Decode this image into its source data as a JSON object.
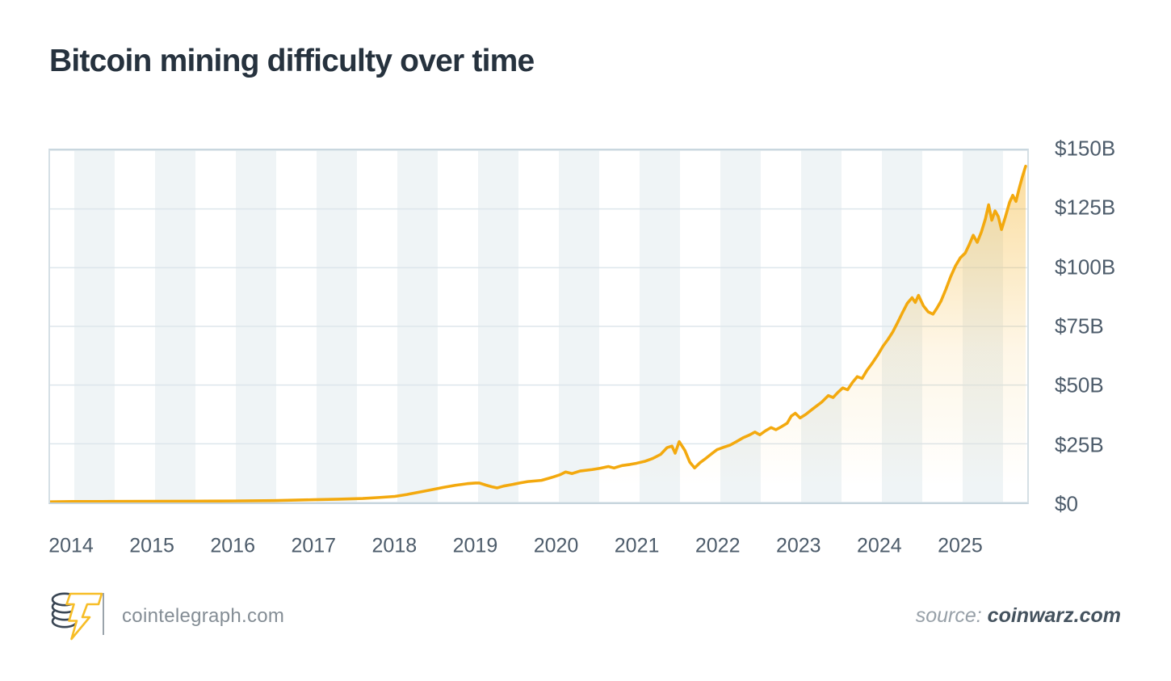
{
  "title": "Bitcoin mining difficulty over time",
  "footer": {
    "brand": "cointelegraph.com",
    "source_label": "source:",
    "source_value": "coinwarz.com"
  },
  "colors": {
    "line": "#F3A90E",
    "fill_top": "rgba(243,169,14,0.40)",
    "fill_mid": "rgba(243,169,14,0.10)",
    "fill_bottom": "rgba(243,169,14,0)",
    "title_text": "#26323E",
    "axis_label": "#4D5C6B",
    "gridline": "#DDE6EC",
    "stripe": "#EFF4F6",
    "logo_dark": "#3A4654",
    "logo_yellow": "#F7BD26"
  },
  "chart_data": {
    "type": "area",
    "title": "Bitcoin mining difficulty over time",
    "xlabel": "",
    "ylabel": "",
    "unit": "USD billions",
    "grid": "horizontal",
    "legend": "none",
    "xlim": [
      2013.72,
      2025.85
    ],
    "ylim": [
      0,
      150
    ],
    "x_tick_values": [
      2014,
      2015,
      2016,
      2017,
      2018,
      2019,
      2020,
      2021,
      2022,
      2023,
      2024,
      2025
    ],
    "x_tick_labels": [
      "2014",
      "2015",
      "2016",
      "2017",
      "2018",
      "2019",
      "2020",
      "2021",
      "2022",
      "2023",
      "2024",
      "2025"
    ],
    "y_tick_values": [
      150,
      125,
      100,
      75,
      50,
      25,
      0
    ],
    "y_tick_labels": [
      "$150B",
      "$125B",
      "$100B",
      "$75B",
      "$50B",
      "$25B",
      "$0"
    ],
    "series": [
      {
        "name": "Bitcoin mining difficulty",
        "x": [
          2013.72,
          2014.0,
          2014.5,
          2015.0,
          2015.5,
          2016.0,
          2016.5,
          2017.0,
          2017.3,
          2017.6,
          2017.8,
          2018.0,
          2018.15,
          2018.3,
          2018.45,
          2018.6,
          2018.75,
          2018.9,
          2019.0,
          2019.05,
          2019.13,
          2019.2,
          2019.27,
          2019.35,
          2019.45,
          2019.55,
          2019.65,
          2019.75,
          2019.82,
          2019.9,
          2019.97,
          2020.05,
          2020.12,
          2020.2,
          2020.3,
          2020.45,
          2020.55,
          2020.65,
          2020.72,
          2020.82,
          2020.92,
          2021.0,
          2021.1,
          2021.2,
          2021.3,
          2021.38,
          2021.44,
          2021.48,
          2021.53,
          2021.6,
          2021.66,
          2021.72,
          2021.79,
          2021.86,
          2021.93,
          2022.0,
          2022.08,
          2022.16,
          2022.24,
          2022.32,
          2022.4,
          2022.47,
          2022.53,
          2022.6,
          2022.67,
          2022.73,
          2022.8,
          2022.87,
          2022.92,
          2022.97,
          2023.03,
          2023.1,
          2023.2,
          2023.3,
          2023.38,
          2023.44,
          2023.5,
          2023.56,
          2023.62,
          2023.68,
          2023.74,
          2023.8,
          2023.86,
          2023.92,
          2024.0,
          2024.06,
          2024.12,
          2024.18,
          2024.24,
          2024.3,
          2024.36,
          2024.42,
          2024.46,
          2024.5,
          2024.56,
          2024.62,
          2024.68,
          2024.73,
          2024.78,
          2024.84,
          2024.9,
          2024.96,
          2025.02,
          2025.08,
          2025.13,
          2025.18,
          2025.23,
          2025.28,
          2025.33,
          2025.37,
          2025.41,
          2025.45,
          2025.49,
          2025.53,
          2025.58,
          2025.63,
          2025.67,
          2025.71,
          2025.75,
          2025.79,
          2025.83
        ],
        "y": [
          0.3,
          0.4,
          0.45,
          0.5,
          0.55,
          0.65,
          0.8,
          1.2,
          1.4,
          1.7,
          2.1,
          2.6,
          3.4,
          4.4,
          5.4,
          6.4,
          7.3,
          8.0,
          8.3,
          8.3,
          7.4,
          6.7,
          6.2,
          7.0,
          7.6,
          8.3,
          8.9,
          9.2,
          9.4,
          10.2,
          10.9,
          11.8,
          13.0,
          12.3,
          13.4,
          14.0,
          14.6,
          15.3,
          14.7,
          15.7,
          16.2,
          16.7,
          17.5,
          18.7,
          20.5,
          23.4,
          24.0,
          21.0,
          25.9,
          22.2,
          17.2,
          14.7,
          17.0,
          18.8,
          20.7,
          22.5,
          23.5,
          24.4,
          25.9,
          27.5,
          28.7,
          30.0,
          28.8,
          30.5,
          31.9,
          31.0,
          32.3,
          33.8,
          36.8,
          38.0,
          36.0,
          37.5,
          40.2,
          42.8,
          45.5,
          44.7,
          46.9,
          48.8,
          48.0,
          51.1,
          53.6,
          52.8,
          56.2,
          59.0,
          63.1,
          66.6,
          69.4,
          72.6,
          76.6,
          80.8,
          84.8,
          87.2,
          85.2,
          88.2,
          83.8,
          81.2,
          80.2,
          82.8,
          85.8,
          90.8,
          96.2,
          100.8,
          104.2,
          106.2,
          109.8,
          113.8,
          110.8,
          115.2,
          120.8,
          126.8,
          120.2,
          124.2,
          121.8,
          116.2,
          121.8,
          127.8,
          130.8,
          128.2,
          133.8,
          138.8,
          143.2
        ]
      }
    ]
  }
}
